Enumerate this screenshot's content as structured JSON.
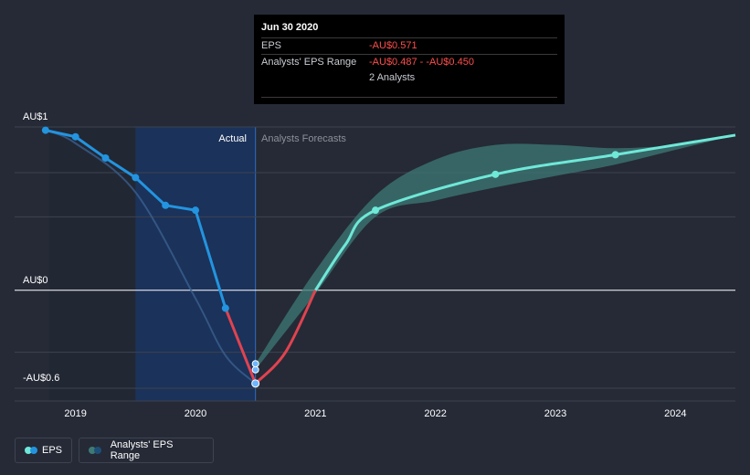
{
  "colors": {
    "background": "#252a36",
    "eps_line": "#2394df",
    "negative_line": "#e0434f",
    "forecast_line": "#6fe8d8",
    "forecast_band": "#3e7a76",
    "actual_shade": "#1a3460",
    "grid": "#3d4350",
    "zero_line": "#ffffff"
  },
  "tooltip": {
    "date": "Jun 30 2020",
    "eps_label": "EPS",
    "eps_value": "-AU$0.571",
    "range_label": "Analysts' EPS Range",
    "range_value": "-AU$0.487 - -AU$0.450",
    "analysts": "2 Analysts"
  },
  "labels": {
    "actual": "Actual",
    "forecasts": "Analysts Forecasts"
  },
  "legend": {
    "eps": "EPS",
    "range": "Analysts' EPS Range"
  },
  "chart_data": {
    "type": "line",
    "y_tick_labels": [
      {
        "value": 1.0,
        "label": "AU$1"
      },
      {
        "value": 0.0,
        "label": "AU$0"
      },
      {
        "value": -0.6,
        "label": "-AU$0.6"
      }
    ],
    "ylim": [
      -0.6,
      1.0
    ],
    "xlim": [
      2018.5,
      2024.5
    ],
    "x_ticks": [
      {
        "value": 2019,
        "label": "2019"
      },
      {
        "value": 2020,
        "label": "2020"
      },
      {
        "value": 2021,
        "label": "2021"
      },
      {
        "value": 2022,
        "label": "2022"
      },
      {
        "value": 2023,
        "label": "2023"
      },
      {
        "value": 2024,
        "label": "2024"
      }
    ],
    "actual_end": 2020.5,
    "shaded_start": 2019.5,
    "series": [
      {
        "name": "EPS",
        "points": [
          [
            2018.75,
            0.98
          ],
          [
            2019.0,
            0.94
          ],
          [
            2019.25,
            0.81
          ],
          [
            2019.5,
            0.69
          ],
          [
            2019.75,
            0.52
          ],
          [
            2020.0,
            0.49
          ],
          [
            2020.25,
            -0.11
          ],
          [
            2020.5,
            -0.571
          ]
        ]
      },
      {
        "name": "EPS forecast",
        "points": [
          [
            2020.5,
            -0.571
          ],
          [
            2021.0,
            0.0
          ],
          [
            2021.5,
            0.49
          ],
          [
            2022.5,
            0.71
          ],
          [
            2023.5,
            0.83
          ],
          [
            2024.5,
            0.95
          ]
        ]
      }
    ],
    "range_markers": [
      [
        2020.5,
        -0.487
      ],
      [
        2020.5,
        -0.45
      ]
    ],
    "analyst_range": {
      "x": [
        2020.5,
        2021.0,
        2021.5,
        2022.0,
        2022.5,
        2023.0,
        2023.5,
        2024.0,
        2024.5
      ],
      "low": [
        -0.487,
        -0.02,
        0.45,
        0.55,
        0.63,
        0.7,
        0.77,
        0.86,
        0.95
      ],
      "high": [
        -0.45,
        0.12,
        0.58,
        0.8,
        0.89,
        0.89,
        0.87,
        0.89,
        0.95
      ]
    },
    "historical_trend": {
      "x": [
        2018.75,
        2019.0,
        2019.5,
        2020.0,
        2020.25,
        2020.5
      ],
      "y": [
        0.98,
        0.9,
        0.6,
        -0.05,
        -0.4,
        -0.571
      ]
    }
  }
}
